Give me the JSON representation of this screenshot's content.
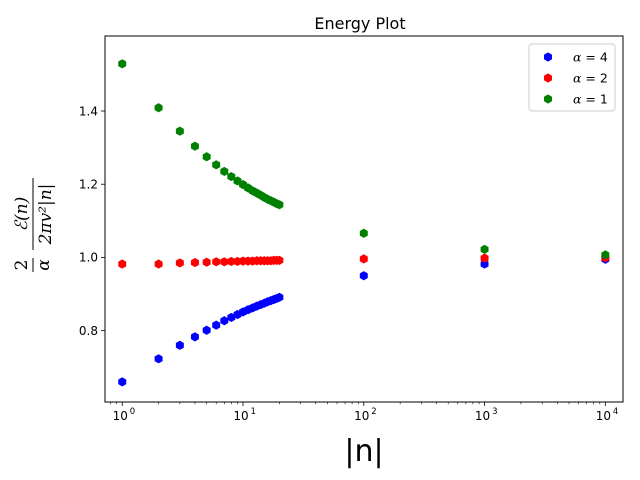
{
  "chart_data": {
    "type": "scatter",
    "title": "Energy Plot",
    "xlabel": "|n|",
    "ylabel": {
      "coef_num": "2",
      "coef_den": "α",
      "num": "ℰ(n)",
      "den": "2πv²|n|"
    },
    "xscale": "log",
    "xlim": [
      0.72,
      14000
    ],
    "ylim": [
      0.605,
      1.605
    ],
    "x_ticks": [
      {
        "value": 1,
        "base": "10",
        "exp": "0"
      },
      {
        "value": 10,
        "base": "10",
        "exp": "1"
      },
      {
        "value": 100,
        "base": "10",
        "exp": "2"
      },
      {
        "value": 1000,
        "base": "10",
        "exp": "3"
      },
      {
        "value": 10000,
        "base": "10",
        "exp": "4"
      }
    ],
    "y_ticks": [
      {
        "value": 0.8,
        "label": "0.8"
      },
      {
        "value": 1.0,
        "label": "1.0"
      },
      {
        "value": 1.2,
        "label": "1.2"
      },
      {
        "value": 1.4,
        "label": "1.4"
      }
    ],
    "legend_position": "top-right",
    "series": [
      {
        "name": "α = 4",
        "label_greek": "α",
        "label_value": "= 4",
        "color": "#0000ff",
        "x": [
          1,
          2,
          3,
          4,
          5,
          6,
          7,
          8,
          9,
          10,
          11,
          12,
          13,
          14,
          15,
          16,
          17,
          18,
          19,
          20,
          100,
          1000,
          10000
        ],
        "y": [
          0.66,
          0.723,
          0.76,
          0.783,
          0.801,
          0.815,
          0.827,
          0.836,
          0.844,
          0.851,
          0.857,
          0.862,
          0.867,
          0.871,
          0.875,
          0.879,
          0.882,
          0.885,
          0.888,
          0.891,
          0.95,
          0.982,
          0.995
        ]
      },
      {
        "name": "α = 2",
        "label_greek": "α",
        "label_value": "= 2",
        "color": "#ff0000",
        "x": [
          1,
          2,
          3,
          4,
          5,
          6,
          7,
          8,
          9,
          10,
          11,
          12,
          13,
          14,
          15,
          16,
          17,
          18,
          19,
          20,
          100,
          1000,
          10000
        ],
        "y": [
          0.982,
          0.982,
          0.985,
          0.986,
          0.987,
          0.988,
          0.988,
          0.989,
          0.989,
          0.99,
          0.99,
          0.99,
          0.991,
          0.991,
          0.991,
          0.991,
          0.991,
          0.992,
          0.992,
          0.992,
          0.996,
          0.998,
          0.999
        ]
      },
      {
        "name": "α = 1",
        "label_greek": "α",
        "label_value": "= 1",
        "color": "#008000",
        "x": [
          1,
          2,
          3,
          4,
          5,
          6,
          7,
          8,
          9,
          10,
          11,
          12,
          13,
          14,
          15,
          16,
          17,
          18,
          19,
          20,
          100,
          1000,
          10000
        ],
        "y": [
          1.529,
          1.409,
          1.345,
          1.304,
          1.275,
          1.253,
          1.235,
          1.221,
          1.209,
          1.199,
          1.19,
          1.182,
          1.176,
          1.17,
          1.164,
          1.159,
          1.155,
          1.151,
          1.147,
          1.144,
          1.066,
          1.022,
          1.007
        ]
      }
    ]
  }
}
